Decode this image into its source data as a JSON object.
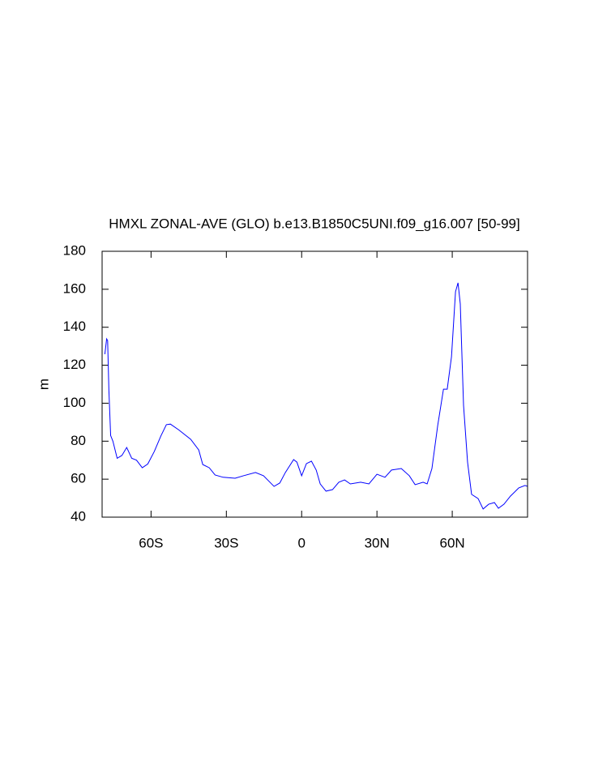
{
  "chart_data": {
    "type": "line",
    "title": "HMXL ZONAL-AVE (GLO) b.e13.B1850C5UNI.f09_g16.007 [50-99]",
    "y_label": "m",
    "x": [
      -78.4,
      -77.7,
      -77.3,
      -76.8,
      -76.1,
      -75.2,
      -73.5,
      -71.6,
      -69.7,
      -67.7,
      -65.8,
      -63.5,
      -61.3,
      -58.7,
      -56.1,
      -53.9,
      -52.3,
      -49,
      -44.2,
      -41,
      -39.4,
      -36.8,
      -34.5,
      -31.3,
      -26.5,
      -23.2,
      -18.4,
      -15.2,
      -11,
      -8.7,
      -6.5,
      -3.2,
      -1.9,
      0,
      1.9,
      3.9,
      5.8,
      7.4,
      9.7,
      12.3,
      14.8,
      17.1,
      19.4,
      23.5,
      26.8,
      30,
      33.2,
      35.8,
      39.7,
      42.9,
      45.2,
      48.4,
      50,
      51.9,
      54.2,
      56.5,
      58,
      59.7,
      61.3,
      62.3,
      63.2,
      64.5,
      66.1,
      67.7,
      70.3,
      72.3,
      74.5,
      76.8,
      78.4,
      80.6,
      83.2,
      86.5,
      89,
      90
    ],
    "series": [
      {
        "color": "#0000ff",
        "values": [
          125.8,
          133.9,
          133,
          107,
          83,
          80,
          71,
          72.5,
          76.7,
          71,
          70,
          66,
          68,
          74.6,
          82.7,
          88.7,
          89,
          86,
          81,
          75.4,
          67.7,
          66,
          62.2,
          61,
          60.5,
          61.8,
          63.5,
          61.8,
          56.2,
          58,
          63.5,
          70.3,
          69,
          61.8,
          68.2,
          69.5,
          64.8,
          57.5,
          53.7,
          54.5,
          58.4,
          59.6,
          57.5,
          58.4,
          57.5,
          62.6,
          61,
          64.8,
          65.6,
          61.8,
          57.1,
          58.4,
          57.5,
          65.6,
          88.2,
          107.4,
          107.4,
          124.5,
          158.7,
          163.4,
          152.3,
          98.9,
          69,
          52,
          49.8,
          44.3,
          46.8,
          47.7,
          44.7,
          46.8,
          51.1,
          55.4,
          56.7,
          56.2
        ]
      }
    ],
    "xlim": [
      -79.5,
      90
    ],
    "ylim": [
      40,
      180
    ],
    "xticks": [
      {
        "value": -60,
        "label": "60S"
      },
      {
        "value": -30,
        "label": "30S"
      },
      0,
      {
        "value": 30,
        "label": "30N"
      },
      {
        "value": 60,
        "label": "60N"
      }
    ],
    "yticks": [
      40,
      60,
      80,
      100,
      120,
      140,
      160,
      180
    ]
  }
}
